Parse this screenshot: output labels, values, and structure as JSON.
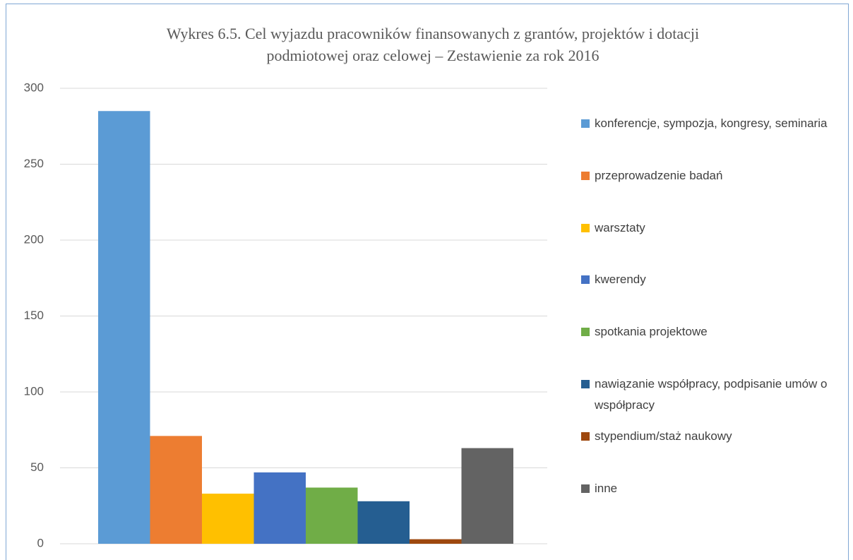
{
  "chart_data": {
    "type": "bar",
    "title": [
      "Wykres 6.5. Cel wyjazdu pracowników finansowanych z grantów, projektów i dotacji",
      "podmiotowej oraz celowej – Zestawienie za rok 2016"
    ],
    "categories": [
      null
    ],
    "series": [
      {
        "name": "konferencje, sympozja, kongresy, seminaria",
        "color": "#5b9bd5",
        "values": [
          285
        ]
      },
      {
        "name": "przeprowadzenie badań",
        "color": "#ed7d31",
        "values": [
          71
        ]
      },
      {
        "name": "warsztaty",
        "color": "#ffc000",
        "values": [
          33
        ]
      },
      {
        "name": "kwerendy",
        "color": "#4472c4",
        "values": [
          47
        ]
      },
      {
        "name": "spotkania projektowe",
        "color": "#70ad47",
        "values": [
          37
        ]
      },
      {
        "name": "nawiązanie współpracy, podpisanie umów o współpracy",
        "color": "#255e91",
        "values": [
          28
        ]
      },
      {
        "name": "stypendium/staż naukowy",
        "color": "#9e480e",
        "values": [
          3
        ]
      },
      {
        "name": "inne",
        "color": "#636363",
        "values": [
          63
        ]
      }
    ],
    "ylim": [
      0,
      300
    ],
    "yticks": [
      0,
      50,
      100,
      150,
      200,
      250,
      300
    ],
    "grid": true,
    "legend": "right"
  }
}
